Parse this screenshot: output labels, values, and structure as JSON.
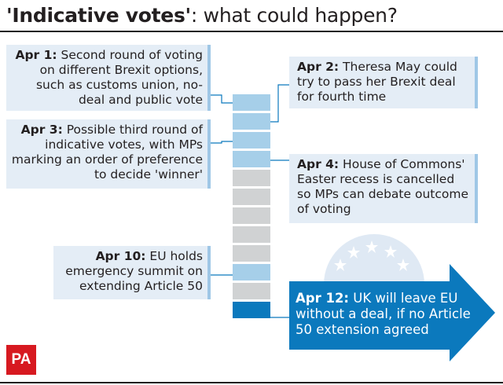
{
  "title": {
    "bold": "'Indicative votes'",
    "rest": ": what could happen?"
  },
  "events": [
    {
      "date": "Apr 1:",
      "text": " Second round of voting on different Brexit options, such as customs union, no-deal and public vote"
    },
    {
      "date": "Apr 2:",
      "text": " Theresa May could try to pass her Brexit deal for fourth time"
    },
    {
      "date": "Apr 3:",
      "text": " Possible third round of indicative votes, with MPs marking an order of preference to decide 'winner'"
    },
    {
      "date": "Apr 4:",
      "text": " House of Commons' Easter recess is cancelled so MPs can debate outcome of voting"
    },
    {
      "date": "Apr 10:",
      "text": " EU holds emergency summit on extending Article 50"
    },
    {
      "date": "Apr 12:",
      "text": " UK will leave EU without a deal, if no Article 50 extension agreed"
    }
  ],
  "calendar": [
    "blue",
    "blue",
    "blue",
    "blue",
    "grey",
    "grey",
    "grey",
    "grey",
    "grey",
    "blue",
    "grey",
    "dark"
  ],
  "colors": {
    "light_blue": "#a6cfe9",
    "grey": "#d0d2d3",
    "dark_blue": "#0b79bd",
    "box_bg": "#e4edf6",
    "logo_red": "#d71920"
  },
  "logo": "PA"
}
